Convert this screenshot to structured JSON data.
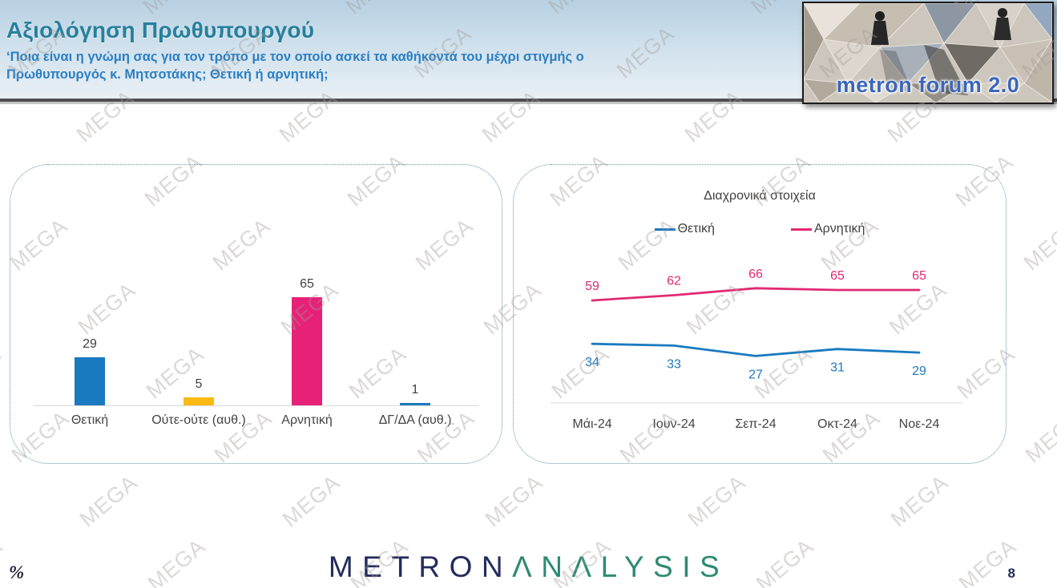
{
  "header": {
    "title": "Αξιολόγηση Πρωθυπουργού",
    "subtitle_line1": "‘Ποια είναι η γνώμη σας για τον τρόπο με τον οποίο ασκεί τα καθήκοντά του μέχρι στιγμής ο",
    "subtitle_line2": "Πρωθυπουργός κ. Μητσοτάκης; Θετική ή αρνητική;",
    "logo_text": "metron forum 2.0"
  },
  "watermark": {
    "text": "MEGA"
  },
  "footer": {
    "percent_label": "%",
    "brand_metron": "METRON",
    "brand_analysis": "ΛNΛLYSIS",
    "page_number": "8"
  },
  "colors": {
    "positive_blue": "#1a7abf",
    "neutral_yellow": "#fcba12",
    "negative_pink": "#e72177",
    "title_teal": "#27809c",
    "subtitle_blue": "#2b7fc3",
    "brand_navy": "#232c5e",
    "brand_teal": "#2e8a74",
    "axis_gray": "#d9d9d9",
    "label_gray": "#404040"
  },
  "chart_data": [
    {
      "type": "bar",
      "categories": [
        "Θετική",
        "Ούτε-ούτε (αυθ.)",
        "Αρνητική",
        "ΔΓ/ΔΑ (αυθ.)"
      ],
      "values": [
        29,
        5,
        65,
        1
      ],
      "bar_colors": [
        "#1a7abf",
        "#fcba12",
        "#e72177",
        "#1a7abf"
      ],
      "title": "",
      "xlabel": "",
      "ylabel": "",
      "grid": false,
      "data_labels": true
    },
    {
      "type": "line",
      "title": "Διαχρονικά στοιχεία",
      "categories": [
        "Μάι-24",
        "Ιουν-24",
        "Σεπ-24",
        "Οκτ-24",
        "Νοε-24"
      ],
      "series": [
        {
          "name": "Θετική",
          "values": [
            34,
            33,
            27,
            31,
            29
          ],
          "color": "#1a7abf",
          "label_position": "below"
        },
        {
          "name": "Αρνητική",
          "values": [
            59,
            62,
            66,
            65,
            65
          ],
          "color": "#e02a74",
          "label_position": "above"
        }
      ],
      "legend_position": "top",
      "grid": false,
      "data_labels": true
    }
  ]
}
